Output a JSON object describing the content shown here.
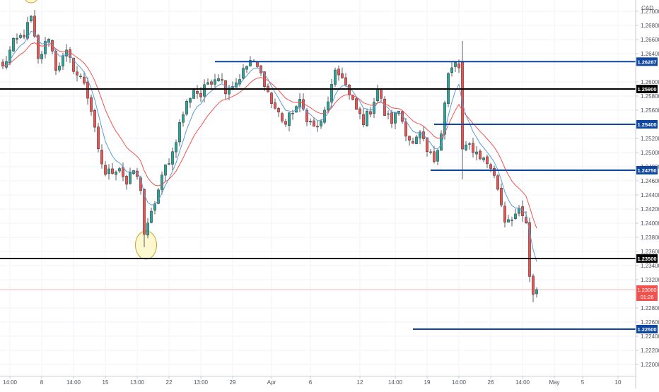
{
  "chart_data": {
    "type": "candlestick",
    "currency": "CAD",
    "colors": {
      "up": "#26a69a",
      "down": "#ef5350",
      "fast_ma": "#5b9bd5",
      "slow_ma": "#ef5350",
      "level_blue": "#0d47a1",
      "level_black": "#000000",
      "price_line": "#f4b6b6",
      "highlight_fill": "#fdf7c8",
      "highlight_stroke": "#c9a227",
      "axis_text": "#50535e",
      "grid": "#f0f3fa"
    },
    "price_range": [
      1.2184,
      1.2716
    ],
    "y_ticks": [
      {
        "value": 1.27,
        "label": "1.27000"
      },
      {
        "value": 1.268,
        "label": "1.26800"
      },
      {
        "value": 1.266,
        "label": "1.26600"
      },
      {
        "value": 1.264,
        "label": "1.26400"
      },
      {
        "value": 1.26,
        "label": "1.26000"
      },
      {
        "value": 1.258,
        "label": "1.25800"
      },
      {
        "value": 1.256,
        "label": "1.25600"
      },
      {
        "value": 1.252,
        "label": "1.25200"
      },
      {
        "value": 1.25,
        "label": "1.25000"
      },
      {
        "value": 1.248,
        "label": "1.24800"
      },
      {
        "value": 1.246,
        "label": "1.24600"
      },
      {
        "value": 1.244,
        "label": "1.24400"
      },
      {
        "value": 1.242,
        "label": "1.24200"
      },
      {
        "value": 1.24,
        "label": "1.24000"
      },
      {
        "value": 1.238,
        "label": "1.23800"
      },
      {
        "value": 1.236,
        "label": "1.23600"
      },
      {
        "value": 1.234,
        "label": "1.23400"
      },
      {
        "value": 1.232,
        "label": "1.23200"
      },
      {
        "value": 1.228,
        "label": "1.22800"
      },
      {
        "value": 1.226,
        "label": "1.22600"
      },
      {
        "value": 1.224,
        "label": "1.22400"
      },
      {
        "value": 1.222,
        "label": "1.22200"
      },
      {
        "value": 1.22,
        "label": "1.22000"
      }
    ],
    "x_ticks": [
      {
        "label": "14:00",
        "bar": 2
      },
      {
        "label": "8",
        "bar": 11
      },
      {
        "label": "14:00",
        "bar": 20
      },
      {
        "label": "15",
        "bar": 29
      },
      {
        "label": "13:00",
        "bar": 38
      },
      {
        "label": "22",
        "bar": 47
      },
      {
        "label": "13:00",
        "bar": 56
      },
      {
        "label": "29",
        "bar": 65
      },
      {
        "label": "Apr",
        "bar": 76
      },
      {
        "label": "6",
        "bar": 87
      },
      {
        "label": "12",
        "bar": 101
      },
      {
        "label": "14:00",
        "bar": 111
      },
      {
        "label": "19",
        "bar": 120
      },
      {
        "label": "14:00",
        "bar": 129
      },
      {
        "label": "26",
        "bar": 138
      },
      {
        "label": "14:00",
        "bar": 147
      },
      {
        "label": "May",
        "bar": 156
      },
      {
        "label": "5",
        "bar": 164
      },
      {
        "label": "10",
        "bar": 174
      }
    ],
    "levels": [
      {
        "price": 1.26287,
        "label": "1.26287",
        "style": "blue",
        "from_bar": 60
      },
      {
        "price": 1.259,
        "label": "1.25900",
        "style": "black",
        "from_bar": 0
      },
      {
        "price": 1.254,
        "label": "1.25400",
        "style": "blue",
        "from_bar": 122
      },
      {
        "price": 1.2475,
        "label": "1.24750",
        "style": "blue",
        "from_bar": 121
      },
      {
        "price": 1.235,
        "label": "1.23500",
        "style": "black",
        "from_bar": 0
      },
      {
        "price": 1.225,
        "label": "1.22500",
        "style": "blue",
        "from_bar": 116
      }
    ],
    "current_price": {
      "price": 1.2306,
      "label": "1.23060",
      "countdown": "01:26"
    },
    "highlights": [
      {
        "bar": 40.5,
        "price": 1.2369,
        "rx_bars": 3.0,
        "ry_price": 0.002
      },
      {
        "bar": 8,
        "price": 1.2722,
        "rx_bars": 2.0,
        "ry_price": 0.001
      }
    ],
    "close_anchors": [
      [
        0,
        1.262
      ],
      [
        3,
        1.2655
      ],
      [
        6,
        1.2668
      ],
      [
        8,
        1.269
      ],
      [
        10,
        1.263
      ],
      [
        13,
        1.2665
      ],
      [
        15,
        1.262
      ],
      [
        18,
        1.264
      ],
      [
        21,
        1.261
      ],
      [
        23,
        1.26
      ],
      [
        25,
        1.256
      ],
      [
        27,
        1.25
      ],
      [
        29,
        1.247
      ],
      [
        31,
        1.2475
      ],
      [
        33,
        1.248
      ],
      [
        35,
        1.2455
      ],
      [
        37,
        1.2475
      ],
      [
        39,
        1.245
      ],
      [
        40,
        1.2385
      ],
      [
        41,
        1.2395
      ],
      [
        43,
        1.243
      ],
      [
        46,
        1.248
      ],
      [
        48,
        1.25
      ],
      [
        50,
        1.254
      ],
      [
        52,
        1.257
      ],
      [
        54,
        1.259
      ],
      [
        56,
        1.258
      ],
      [
        58,
        1.26
      ],
      [
        61,
        1.261
      ],
      [
        63,
        1.259
      ],
      [
        66,
        1.26
      ],
      [
        70,
        1.263
      ],
      [
        72,
        1.262
      ],
      [
        74,
        1.26
      ],
      [
        76,
        1.257
      ],
      [
        78,
        1.2555
      ],
      [
        80,
        1.254
      ],
      [
        82,
        1.256
      ],
      [
        84,
        1.257
      ],
      [
        86,
        1.255
      ],
      [
        88,
        1.2535
      ],
      [
        90,
        1.254
      ],
      [
        92,
        1.2575
      ],
      [
        94,
        1.261
      ],
      [
        96,
        1.261
      ],
      [
        98,
        1.258
      ],
      [
        100,
        1.256
      ],
      [
        102,
        1.2545
      ],
      [
        104,
        1.256
      ],
      [
        106,
        1.259
      ],
      [
        108,
        1.2555
      ],
      [
        110,
        1.2545
      ],
      [
        112,
        1.256
      ],
      [
        114,
        1.253
      ],
      [
        116,
        1.251
      ],
      [
        118,
        1.2525
      ],
      [
        120,
        1.25
      ],
      [
        122,
        1.249
      ],
      [
        124,
        1.253
      ],
      [
        126,
        1.261
      ],
      [
        128,
        1.2625
      ],
      [
        129,
        1.262
      ],
      [
        130,
        1.25
      ],
      [
        132,
        1.251
      ],
      [
        134,
        1.25
      ],
      [
        136,
        1.249
      ],
      [
        138,
        1.248
      ],
      [
        140,
        1.245
      ],
      [
        142,
        1.2405
      ],
      [
        144,
        1.241
      ],
      [
        146,
        1.2415
      ],
      [
        148,
        1.24
      ],
      [
        149,
        1.232
      ],
      [
        150,
        1.2295
      ],
      [
        151,
        1.2306
      ]
    ],
    "bar_count": 152
  }
}
